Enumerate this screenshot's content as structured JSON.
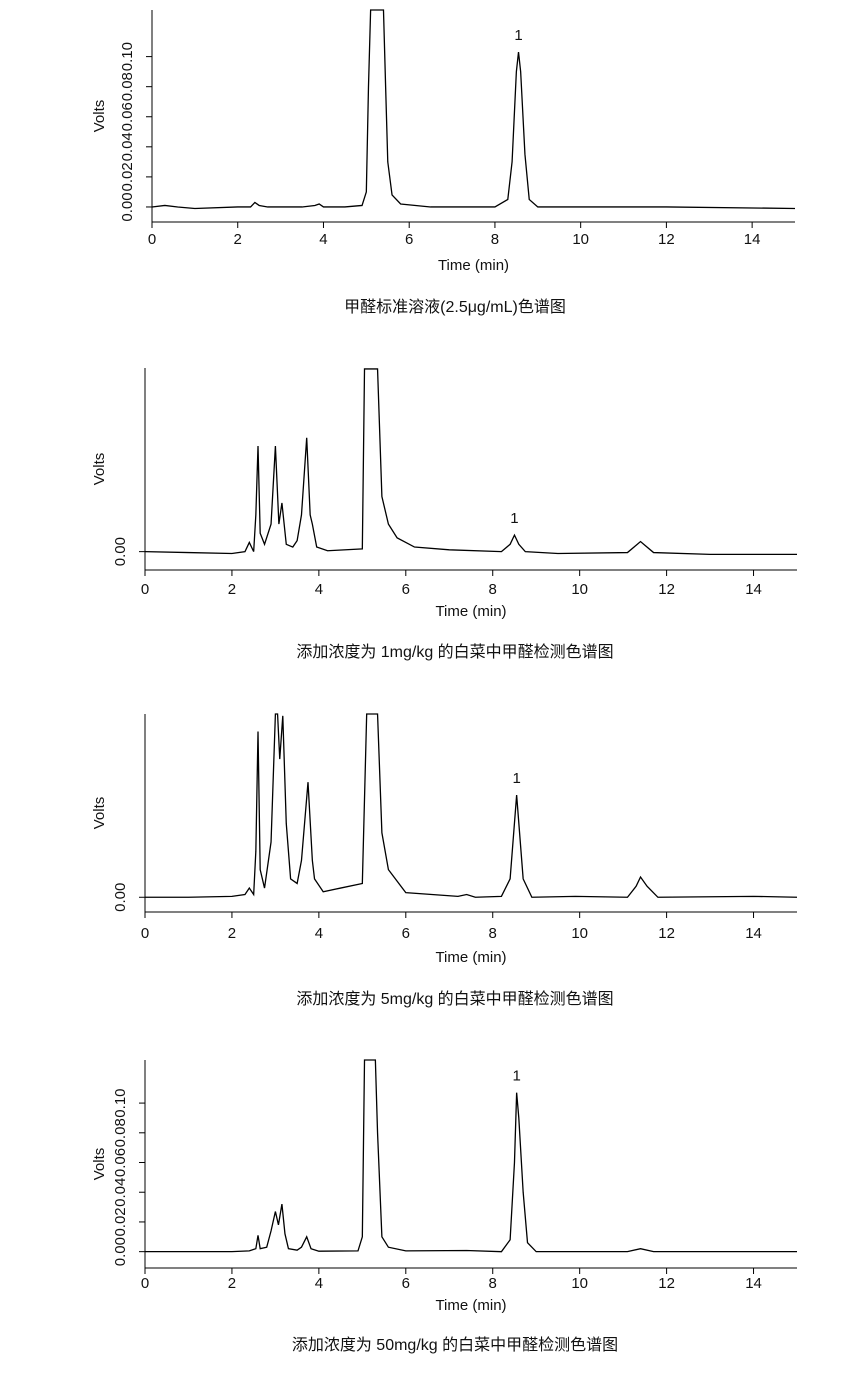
{
  "chart_data": [
    {
      "type": "line",
      "title": "甲醛标准溶液(2.5μg/mL)色谱图",
      "x_label": "Time (min)",
      "y_label": "Volts",
      "xlim": [
        0,
        15
      ],
      "xticks": [
        0,
        2,
        4,
        6,
        8,
        10,
        12,
        14
      ],
      "ylim": [
        -0.01,
        0.131
      ],
      "yticks": [
        {
          "value": 0,
          "label": "0.00"
        },
        {
          "value": 0.02,
          "label": "0.02"
        },
        {
          "value": 0.04,
          "label": "0.04"
        },
        {
          "value": 0.06,
          "label": "0.06"
        },
        {
          "value": 0.08,
          "label": "0.08"
        },
        {
          "value": 0.1,
          "label": "0.10"
        }
      ],
      "x": [
        0,
        0.3,
        0.6,
        1,
        2,
        2.3,
        2.4,
        2.5,
        2.7,
        3.5,
        3.8,
        3.9,
        4.0,
        4.5,
        4.9,
        5.0,
        5.05,
        5.1,
        5.4,
        5.45,
        5.5,
        5.6,
        5.8,
        6.5,
        8.0,
        8.3,
        8.4,
        8.5,
        8.55,
        8.6,
        8.7,
        8.8,
        9.0,
        10,
        12,
        15
      ],
      "series": [
        {
          "color": "#000000",
          "values": [
            0,
            0.001,
            0,
            -0.001,
            0,
            0,
            0.003,
            0.001,
            0,
            0,
            0.001,
            0.002,
            0,
            0,
            0.001,
            0.01,
            0.08,
            0.131,
            0.131,
            0.08,
            0.03,
            0.008,
            0.002,
            0,
            0,
            0.005,
            0.03,
            0.09,
            0.103,
            0.09,
            0.035,
            0.005,
            0,
            0,
            0,
            -0.001
          ]
        }
      ],
      "annotations": [
        {
          "text": "1",
          "x": 8.55,
          "y": 0.103
        }
      ]
    },
    {
      "type": "line",
      "title": "添加浓度为 1mg/kg 的白菜中甲醛检测色谱图",
      "x_label": "Time (min)",
      "y_label": "Volts",
      "xlim": [
        0,
        15
      ],
      "xticks": [
        0,
        2,
        4,
        6,
        8,
        10,
        12,
        14
      ],
      "ylim": [
        -0.002,
        0.02
      ],
      "yticks": [
        {
          "value": 0,
          "label": "0.00"
        }
      ],
      "x": [
        0,
        1,
        2,
        2.3,
        2.4,
        2.5,
        2.55,
        2.6,
        2.65,
        2.75,
        2.9,
        3.0,
        3.08,
        3.15,
        3.25,
        3.4,
        3.5,
        3.6,
        3.72,
        3.8,
        3.85,
        3.95,
        4.2,
        5.0,
        5.05,
        5.35,
        5.45,
        5.6,
        5.8,
        6.2,
        7,
        8.2,
        8.4,
        8.5,
        8.6,
        8.75,
        9.5,
        11.1,
        11.3,
        11.4,
        11.5,
        11.7,
        13,
        15
      ],
      "series": [
        {
          "color": "#000000",
          "values": [
            0,
            -0.0001,
            -0.0002,
            0,
            0.001,
            0,
            0.004,
            0.0115,
            0.002,
            0.0008,
            0.003,
            0.0115,
            0.003,
            0.0053,
            0.0008,
            0.0005,
            0.0012,
            0.004,
            0.0124,
            0.004,
            0.003,
            0.0005,
            0.0001,
            0.0003,
            0.0199,
            0.0199,
            0.006,
            0.003,
            0.0015,
            0.0005,
            0.0002,
            0,
            0.0008,
            0.0018,
            0.0008,
            0,
            -0.0002,
            -0.0001,
            0.0007,
            0.0011,
            0.0007,
            -0.0001,
            -0.0003,
            -0.0003
          ]
        }
      ],
      "annotations": [
        {
          "text": "1",
          "x": 8.5,
          "y": 0.0018
        }
      ]
    },
    {
      "type": "line",
      "title": "添加浓度为 5mg/kg 的白菜中甲醛检测色谱图",
      "x_label": "Time (min)",
      "y_label": "Volts",
      "xlim": [
        0,
        15
      ],
      "xticks": [
        0,
        2,
        4,
        6,
        8,
        10,
        12,
        14
      ],
      "ylim": [
        -0.0016,
        0.0199
      ],
      "yticks": [
        {
          "value": 0,
          "label": "0.00"
        }
      ],
      "x": [
        0,
        1,
        2,
        2.3,
        2.4,
        2.5,
        2.55,
        2.6,
        2.65,
        2.75,
        2.9,
        3.0,
        3.05,
        3.1,
        3.17,
        3.25,
        3.35,
        3.5,
        3.6,
        3.75,
        3.85,
        3.9,
        4.1,
        4.5,
        5.0,
        5.1,
        5.35,
        5.45,
        5.6,
        6.0,
        7.2,
        7.4,
        7.6,
        8.2,
        8.4,
        8.55,
        8.7,
        8.9,
        9.9,
        11.1,
        11.3,
        11.4,
        11.55,
        11.8,
        14,
        15
      ],
      "series": [
        {
          "color": "#000000",
          "values": [
            0,
            0,
            0.0001,
            0.0003,
            0.001,
            0.0003,
            0.005,
            0.018,
            0.003,
            0.001,
            0.006,
            0.0199,
            0.0199,
            0.015,
            0.0197,
            0.008,
            0.002,
            0.0015,
            0.004,
            0.0125,
            0.004,
            0.002,
            0.0006,
            0.001,
            0.0015,
            0.0199,
            0.0199,
            0.007,
            0.003,
            0.0005,
            0.0001,
            0.0003,
            0,
            0.0001,
            0.002,
            0.0111,
            0.002,
            0,
            0.0001,
            0,
            0.0012,
            0.0022,
            0.0012,
            0,
            0.0001,
            0
          ]
        }
      ],
      "annotations": [
        {
          "text": "1",
          "x": 8.55,
          "y": 0.0111
        }
      ]
    },
    {
      "type": "line",
      "title": "添加浓度为 50mg/kg 的白菜中甲醛检测色谱图",
      "x_label": "Time (min)",
      "y_label": "Volts",
      "xlim": [
        0,
        15
      ],
      "xticks": [
        0,
        2,
        4,
        6,
        8,
        10,
        12,
        14
      ],
      "ylim": [
        -0.011,
        0.129
      ],
      "yticks": [
        {
          "value": 0,
          "label": "0.00"
        },
        {
          "value": 0.02,
          "label": "0.02"
        },
        {
          "value": 0.04,
          "label": "0.04"
        },
        {
          "value": 0.06,
          "label": "0.06"
        },
        {
          "value": 0.08,
          "label": "0.08"
        },
        {
          "value": 0.1,
          "label": "0.10"
        }
      ],
      "x": [
        0,
        1,
        2,
        2.4,
        2.55,
        2.6,
        2.65,
        2.8,
        2.9,
        3.0,
        3.07,
        3.15,
        3.22,
        3.3,
        3.5,
        3.6,
        3.72,
        3.82,
        4.0,
        4.9,
        5.0,
        5.05,
        5.3,
        5.35,
        5.45,
        5.6,
        6.0,
        7.4,
        8.2,
        8.4,
        8.5,
        8.55,
        8.6,
        8.7,
        8.8,
        9.0,
        11.1,
        11.4,
        11.7,
        13,
        15
      ],
      "series": [
        {
          "color": "#000000",
          "values": [
            0,
            0,
            0,
            0.0005,
            0.002,
            0.011,
            0.002,
            0.003,
            0.014,
            0.027,
            0.018,
            0.032,
            0.012,
            0.002,
            0.001,
            0.003,
            0.01,
            0.002,
            0.0003,
            0.0005,
            0.01,
            0.129,
            0.129,
            0.08,
            0.01,
            0.003,
            0.0005,
            0.0008,
            0,
            0.008,
            0.06,
            0.107,
            0.09,
            0.04,
            0.006,
            0,
            0,
            0.002,
            0,
            0,
            0
          ]
        }
      ],
      "annotations": [
        {
          "text": "1",
          "x": 8.55,
          "y": 0.107
        }
      ]
    }
  ]
}
